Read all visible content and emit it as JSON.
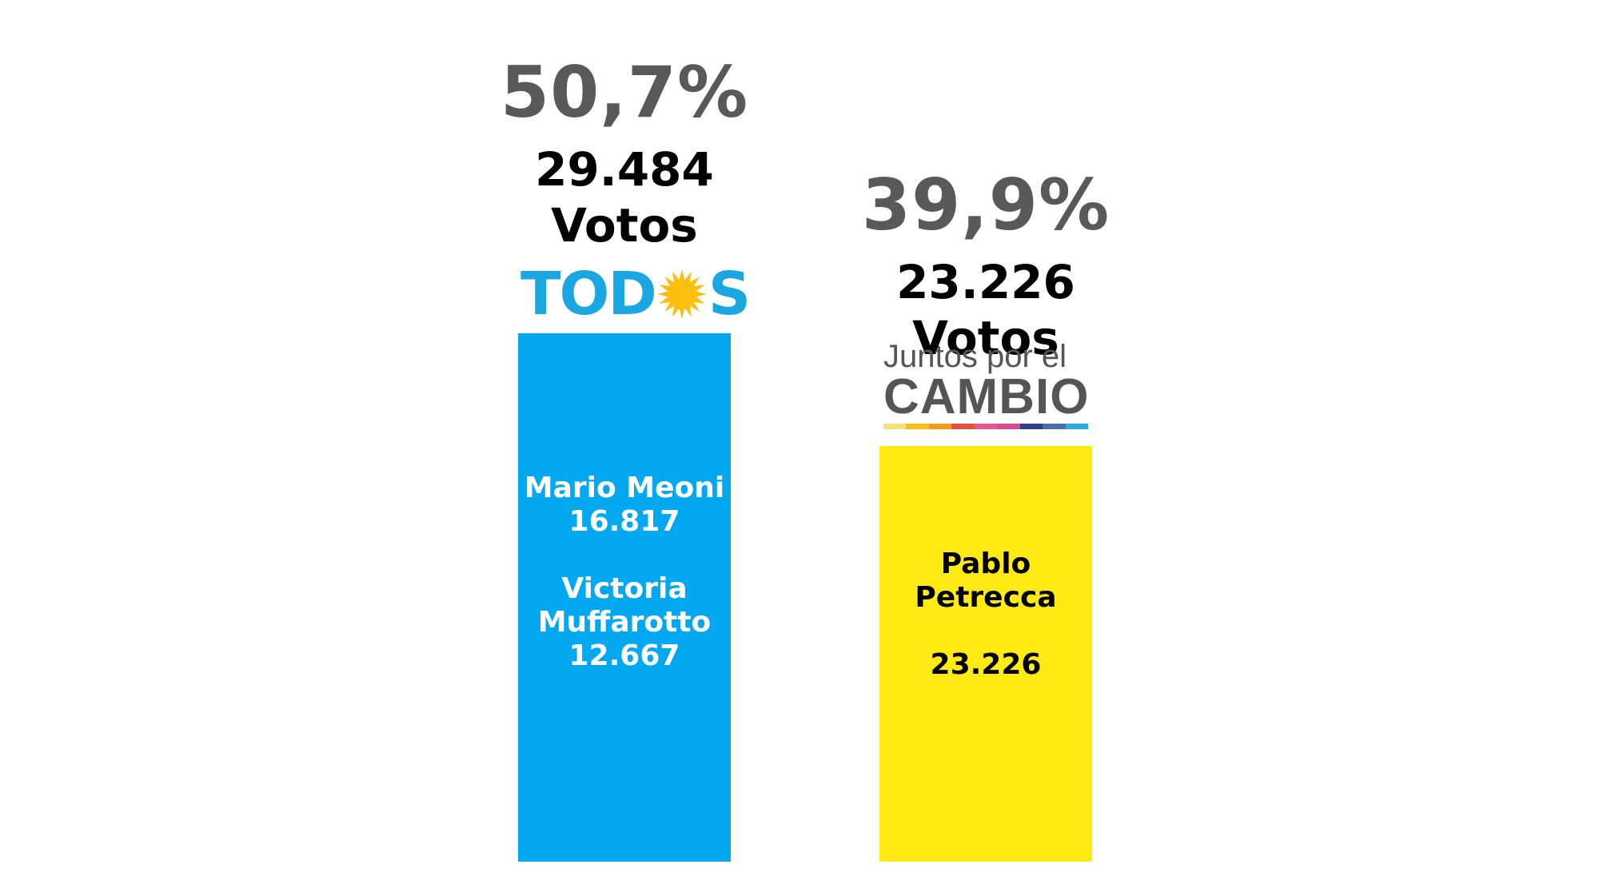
{
  "chart_data": {
    "type": "bar",
    "categories": [
      "TODOS",
      "Juntos por el CAMBIO"
    ],
    "values": [
      50.7,
      39.9
    ],
    "ylim": [
      0,
      100
    ],
    "series": [
      {
        "percent_label": "50,7%",
        "votes_number": "29.484",
        "votes_word": "Votos",
        "color": "#04a8f0",
        "text_color": "#ffffff",
        "candidates": [
          {
            "name_lines": [
              "Mario Meoni"
            ],
            "votes": "16.817"
          },
          {
            "name_lines": [
              "Victoria",
              "Muffarotto"
            ],
            "votes": "12.667"
          }
        ]
      },
      {
        "percent_label": "39,9%",
        "votes_number": "23.226",
        "votes_word": "Votos",
        "color": "#ffea14",
        "text_color": "#000000",
        "candidates": [
          {
            "name_lines": [
              "Pablo",
              "Petrecca"
            ],
            "votes": "23.226"
          }
        ]
      }
    ]
  },
  "logos": {
    "todos": {
      "text_left": "TOD",
      "text_right": "S",
      "color": "#1aa6e0",
      "sun_color": "#fdbf0f",
      "icon": "sun-icon"
    },
    "juntos": {
      "line1": "Juntos por el",
      "line2": "CAMBIO",
      "color": "#555555",
      "stripe_colors": [
        "#f7e27a",
        "#fbbf14",
        "#f39a1e",
        "#e8503a",
        "#e45a8c",
        "#d64b8f",
        "#2e3f8f",
        "#4a6ea8",
        "#29abe2"
      ]
    }
  }
}
